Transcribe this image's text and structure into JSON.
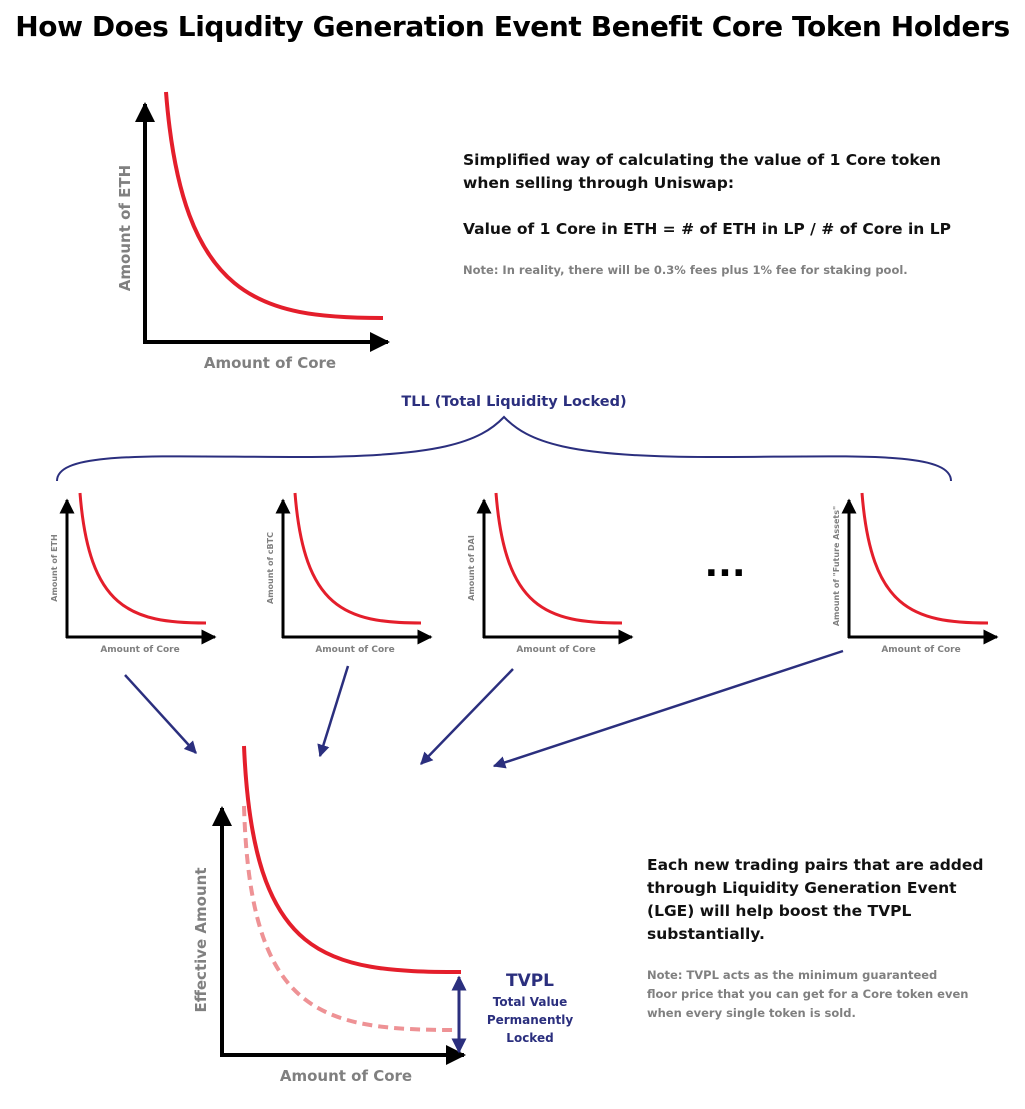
{
  "title": "How Does Liqudity Generation Event Benefit Core Token Holders",
  "top_chart": {
    "xlabel": "Amount of Core",
    "ylabel": "Amount of ETH"
  },
  "explanation": {
    "line1": "Simplified way of calculating the value of 1 Core token",
    "line2": "when selling through Uniswap:",
    "formula": "Value of 1 Core in ETH = # of ETH in LP / # of Core in LP",
    "note": "Note: In reality, there will be 0.3% fees plus 1% fee for staking pool."
  },
  "tll_label": "TLL (Total Liquidity Locked)",
  "pairs": [
    {
      "xlabel": "Amount of Core",
      "ylabel": "Amount of ETH"
    },
    {
      "xlabel": "Amount of Core",
      "ylabel": "Amount of cBTC"
    },
    {
      "xlabel": "Amount of Core",
      "ylabel": "Amount of DAI"
    },
    {
      "xlabel": "Amount of Core",
      "ylabel": "Amount of \"Future Assets\""
    }
  ],
  "ellipsis": "...",
  "bottom_chart": {
    "xlabel": "Amount of Core",
    "ylabel": "Effective Amount"
  },
  "tvpl": {
    "abbr": "TVPL",
    "line1": "Total Value",
    "line2": "Permanently",
    "line3": "Locked"
  },
  "benefit": {
    "line1": "Each new trading pairs that are added",
    "line2": "through Liquidity Generation Event",
    "line3": "(LGE) will help boost the TVPL",
    "line4": "substantially.",
    "note1": "Note: TVPL acts as the minimum guaranteed",
    "note2": "floor price that you can get for a Core token even",
    "note3": "when every single token is sold."
  },
  "colors": {
    "curve": "#e41e2b",
    "curve_faded": "#ee9295",
    "accent": "#2b2f7e",
    "axis": "#000000",
    "label_gray": "#808080"
  }
}
